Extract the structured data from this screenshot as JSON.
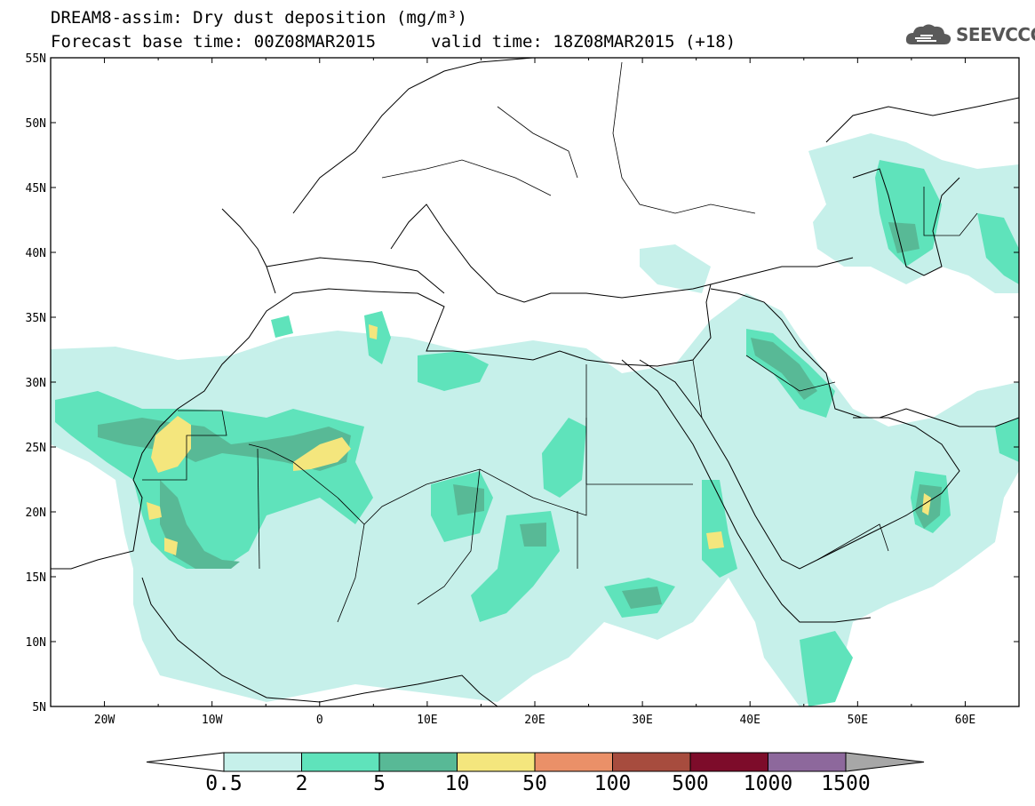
{
  "title": {
    "line1": "DREAM8-assim: Dry dust deposition (mg/m³)",
    "base_time": "Forecast base time: 00Z08MAR2015",
    "valid_time": "valid time: 18Z08MAR2015 (+18)"
  },
  "logo": {
    "icon": "cloud-logo-icon",
    "text": "SEEVCCC"
  },
  "map": {
    "lon_range": [
      -25,
      65
    ],
    "lat_range": [
      5,
      55
    ],
    "lat_ticks": [
      {
        "value": 55,
        "label": "55N"
      },
      {
        "value": 50,
        "label": "50N"
      },
      {
        "value": 45,
        "label": "45N"
      },
      {
        "value": 40,
        "label": "40N"
      },
      {
        "value": 35,
        "label": "35N"
      },
      {
        "value": 30,
        "label": "30N"
      },
      {
        "value": 25,
        "label": "25N"
      },
      {
        "value": 20,
        "label": "20N"
      },
      {
        "value": 15,
        "label": "15N"
      },
      {
        "value": 10,
        "label": "10N"
      },
      {
        "value": 5,
        "label": "5N"
      }
    ],
    "lon_ticks": [
      {
        "value": -20,
        "label": "20W"
      },
      {
        "value": -10,
        "label": "10W"
      },
      {
        "value": 0,
        "label": "0"
      },
      {
        "value": 10,
        "label": "10E"
      },
      {
        "value": 20,
        "label": "20E"
      },
      {
        "value": 30,
        "label": "30E"
      },
      {
        "value": 40,
        "label": "40E"
      },
      {
        "value": 50,
        "label": "50E"
      },
      {
        "value": 60,
        "label": "60E"
      }
    ]
  },
  "colorbar": {
    "levels": [
      "0.5",
      "2",
      "5",
      "10",
      "50",
      "100",
      "500",
      "1000",
      "1500"
    ],
    "colors": [
      "#c6f0ea",
      "#5fe3bb",
      "#58b996",
      "#f4e67d",
      "#ea9068",
      "#a74c3e",
      "#7d0c2a",
      "#8d689c"
    ],
    "under_color": "#ffffff",
    "over_color": "#a7a7a7"
  },
  "dust_colors": {
    "light": "#c6f0ea",
    "medium": "#5fe3bb",
    "dark": "#58b996",
    "yellow": "#f4e67d"
  }
}
